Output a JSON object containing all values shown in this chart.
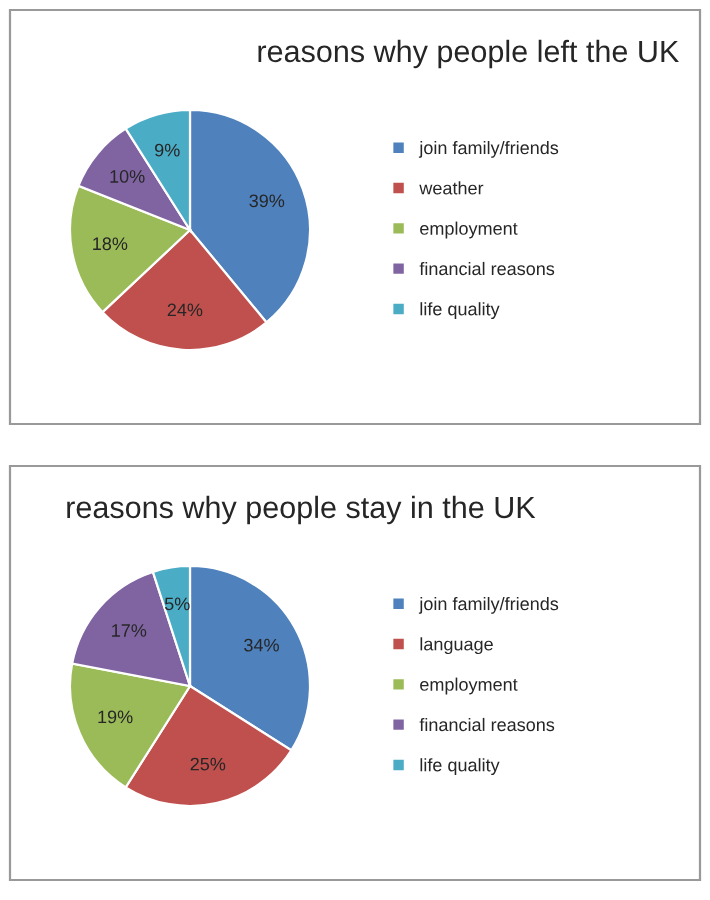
{
  "chart_data": [
    {
      "type": "pie",
      "title": "reasons why people left the UK",
      "categories": [
        "join family/friends",
        "weather",
        "employment",
        "financial reasons",
        "life quality"
      ],
      "values": [
        39,
        24,
        18,
        10,
        9
      ],
      "colors": [
        "#4f81bd",
        "#c0504d",
        "#9bbb59",
        "#8064a2",
        "#4bacc6"
      ],
      "value_labels": [
        "39%",
        "24%",
        "18%",
        "10%",
        "9%"
      ],
      "legend": "right"
    },
    {
      "type": "pie",
      "title": "reasons why people stay in the UK",
      "categories": [
        "join family/friends",
        "language",
        "employment",
        "financial reasons",
        "life quality"
      ],
      "values": [
        34,
        25,
        19,
        17,
        5
      ],
      "colors": [
        "#4f81bd",
        "#c0504d",
        "#9bbb59",
        "#8064a2",
        "#4bacc6"
      ],
      "value_labels": [
        "34%",
        "25%",
        "19%",
        "17%",
        "5%"
      ],
      "legend": "right"
    }
  ]
}
